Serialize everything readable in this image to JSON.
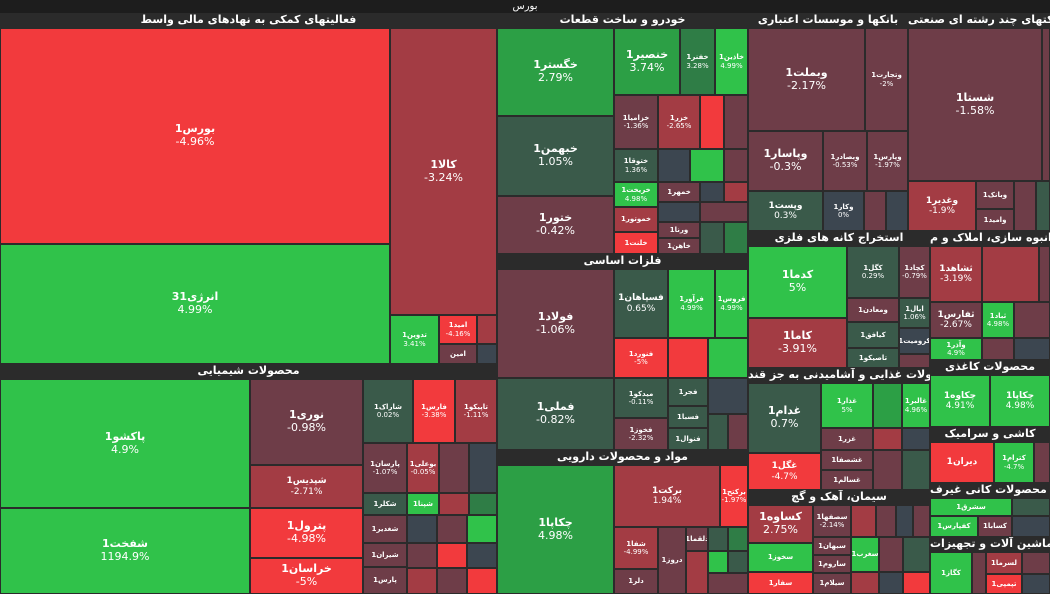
{
  "title": "بورس",
  "colors": {
    "strong_green": "#30c24a",
    "green": "#2c9f45",
    "mid_green": "#2f7d46",
    "dark_green": "#3a5a4a",
    "neutral": "#3c4650",
    "dark_red": "#6e3d48",
    "red": "#a33c44",
    "strong_red": "#f23a3d"
  },
  "sectors": [
    {
      "name": "فعالیتهای کمکی به نهادهای مالی واسط"
    },
    {
      "name": "خودرو و ساخت قطعات"
    },
    {
      "name": "بانکها و موسسات اعتباری"
    },
    {
      "name": "شرکتهای چند رشته ای صنعتی"
    },
    {
      "name": "فلزات اساسی"
    },
    {
      "name": "استخراج کانه های فلزی"
    },
    {
      "name": "انبوه سازی، املاک و م"
    },
    {
      "name": "محصولات شیمیایی"
    },
    {
      "name": "محصولات غذایی و آشامیدنی به جز قند"
    },
    {
      "name": "محصولات کاغذی"
    },
    {
      "name": "مواد و محصولات دارویی"
    },
    {
      "name": "کاشی و سرامیک"
    },
    {
      "name": "سیمان، آهک و گچ"
    },
    {
      "name": "سایر محصولات کانی غیرف"
    },
    {
      "name": "ماشین آلات و تجهیزات"
    }
  ],
  "stocks": [
    {
      "name": "بورس1",
      "change": "-4.96%"
    },
    {
      "name": "کالا1",
      "change": "-3.24%"
    },
    {
      "name": "انرژی31",
      "change": "4.99%"
    },
    {
      "name": "تدوین1",
      "change": "3.41%"
    },
    {
      "name": "امید1",
      "change": "-4.16%"
    },
    {
      "name": "امین",
      "change": ""
    },
    {
      "name": "خگستر1",
      "change": "2.79%"
    },
    {
      "name": "خنصیر1",
      "change": "3.74%"
    },
    {
      "name": "خفنر1",
      "change": "3.28%"
    },
    {
      "name": "خاذین1",
      "change": "4.99%"
    },
    {
      "name": "خبهمن1",
      "change": "1.05%"
    },
    {
      "name": "خزامیا1",
      "change": "-1.36%"
    },
    {
      "name": "خزر1",
      "change": "-2.65%"
    },
    {
      "name": "ختوقا1",
      "change": "1.36%"
    },
    {
      "name": "ختور1",
      "change": "-0.42%"
    },
    {
      "name": "خریخت1",
      "change": "4.98%"
    },
    {
      "name": "خمهر1",
      "change": ""
    },
    {
      "name": "خموتور1",
      "change": ""
    },
    {
      "name": "ورنا1",
      "change": ""
    },
    {
      "name": "خلنت1",
      "change": ""
    },
    {
      "name": "خاهن1",
      "change": ""
    },
    {
      "name": "وبملت1",
      "change": "-2.17%"
    },
    {
      "name": "وتجارت1",
      "change": "-2%"
    },
    {
      "name": "وپاسار1",
      "change": "-0.3%"
    },
    {
      "name": "وبصادر1",
      "change": "-0.53%"
    },
    {
      "name": "وپارس1",
      "change": "-1.97%"
    },
    {
      "name": "وپست1",
      "change": "0.3%"
    },
    {
      "name": "وکار1",
      "change": "0%"
    },
    {
      "name": "شستا1",
      "change": "-1.58%"
    },
    {
      "name": "وبانک1",
      "change": ""
    },
    {
      "name": "وغدیر1",
      "change": "-1.9%"
    },
    {
      "name": "وامید1",
      "change": ""
    },
    {
      "name": "فولاد1",
      "change": "-1.06%"
    },
    {
      "name": "فسپاهان1",
      "change": "0.65%"
    },
    {
      "name": "فرآور1",
      "change": "4.99%"
    },
    {
      "name": "فروس1",
      "change": "4.99%"
    },
    {
      "name": "فنورد1",
      "change": "-5%"
    },
    {
      "name": "فملی1",
      "change": "-0.82%"
    },
    {
      "name": "فجر1",
      "change": ""
    },
    {
      "name": "میدکو1",
      "change": "-0.11%"
    },
    {
      "name": "فسبا1",
      "change": ""
    },
    {
      "name": "فخوز1",
      "change": "-2.32%"
    },
    {
      "name": "فنوال1",
      "change": ""
    },
    {
      "name": "کدما1",
      "change": "5%"
    },
    {
      "name": "کگل1",
      "change": "0.29%"
    },
    {
      "name": "کچاد1",
      "change": "-0.79%"
    },
    {
      "name": "ومعادن1",
      "change": ""
    },
    {
      "name": "ایال1",
      "change": "1.06%"
    },
    {
      "name": "کاما1",
      "change": "-3.91%"
    },
    {
      "name": "کیافق1",
      "change": ""
    },
    {
      "name": "کرومیت1",
      "change": ""
    },
    {
      "name": "تاصیکو1",
      "change": ""
    },
    {
      "name": "ثشاهد1",
      "change": "-3.19%"
    },
    {
      "name": "ثفارس1",
      "change": "-2.67%"
    },
    {
      "name": "ثباد1",
      "change": "4.98%"
    },
    {
      "name": "وآذر1",
      "change": "4.9%"
    },
    {
      "name": "پاکشو1",
      "change": "4.9%"
    },
    {
      "name": "نوری1",
      "change": "-0.98%"
    },
    {
      "name": "شاراک1",
      "change": "0.02%"
    },
    {
      "name": "فارس1",
      "change": "-3.38%"
    },
    {
      "name": "تاپیکو1",
      "change": "-1.11%"
    },
    {
      "name": "شپدیس1",
      "change": "-2.71%"
    },
    {
      "name": "پارسان1",
      "change": "-1.07%"
    },
    {
      "name": "بوعلی1",
      "change": "-0.05%"
    },
    {
      "name": "شکلر1",
      "change": ""
    },
    {
      "name": "شپنا1",
      "change": ""
    },
    {
      "name": "شفخت1",
      "change": "1194.9%"
    },
    {
      "name": "پترول1",
      "change": "-4.98%"
    },
    {
      "name": "شغدیر1",
      "change": ""
    },
    {
      "name": "خراسان1",
      "change": "-5%"
    },
    {
      "name": "شیران1",
      "change": ""
    },
    {
      "name": "پارس1",
      "change": ""
    },
    {
      "name": "غدام1",
      "change": "0.7%"
    },
    {
      "name": "غذار1",
      "change": "5%"
    },
    {
      "name": "غالبر1",
      "change": "4.96%"
    },
    {
      "name": "غزر1",
      "change": ""
    },
    {
      "name": "غشصفا1",
      "change": ""
    },
    {
      "name": "غگل1",
      "change": "-4.7%"
    },
    {
      "name": "غسالم1",
      "change": ""
    },
    {
      "name": "چکاوه1",
      "change": "4.91%"
    },
    {
      "name": "چکاپا1",
      "change": "4.98%"
    },
    {
      "name": "برکت1",
      "change": "1.94%"
    },
    {
      "name": "برکتح1",
      "change": "-1.97%"
    },
    {
      "name": "شفا1",
      "change": "-4.99%"
    },
    {
      "name": "دروز1",
      "change": "-4.98%"
    },
    {
      "name": "دلقما1",
      "change": ""
    },
    {
      "name": "دلر1",
      "change": ""
    },
    {
      "name": "دیران1",
      "change": ""
    },
    {
      "name": "کترام1",
      "change": "-4.7%"
    },
    {
      "name": "کساوه1",
      "change": "2.75%"
    },
    {
      "name": "سصفها1",
      "change": "-2.14%"
    },
    {
      "name": "سبهان1",
      "change": "-2.12%"
    },
    {
      "name": "سخوز1",
      "change": ""
    },
    {
      "name": "ساروم1",
      "change": "4.99%"
    },
    {
      "name": "سغرب1",
      "change": ""
    },
    {
      "name": "سفار1",
      "change": ""
    },
    {
      "name": "سیلام1",
      "change": ""
    },
    {
      "name": "سشرق1",
      "change": ""
    },
    {
      "name": "کفپارس1",
      "change": ""
    },
    {
      "name": "کسابا1",
      "change": ""
    },
    {
      "name": "کگاز1",
      "change": ""
    },
    {
      "name": "لسرما1",
      "change": "4.98%"
    },
    {
      "name": "تپمپی1",
      "change": ""
    },
    {
      "name": "تکشا1",
      "change": ""
    }
  ]
}
